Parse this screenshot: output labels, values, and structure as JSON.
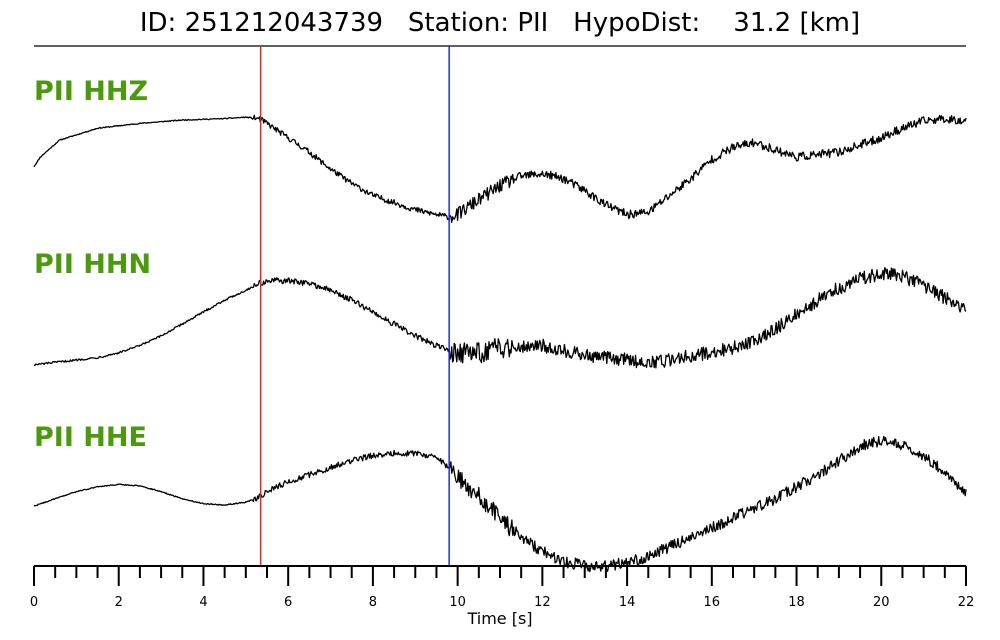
{
  "header": {
    "title": "ID: 251212043739   Station: PII   HypoDist:    31.2 [km]"
  },
  "chart_data": {
    "type": "line",
    "title": "ID: 251212043739   Station: PII   HypoDist:    31.2 [km]",
    "xlabel": "Time [s]",
    "ylabel": "",
    "xlim": [
      0,
      22
    ],
    "x_ticks": [
      0,
      2,
      4,
      6,
      8,
      10,
      12,
      14,
      16,
      18,
      20,
      22
    ],
    "x_tick_labels": [
      "0",
      "2",
      "4",
      "6",
      "8",
      "10",
      "12",
      "14",
      "16",
      "18",
      "20",
      "22"
    ],
    "minor_tick_step": 0.5,
    "grid": false,
    "picks": [
      {
        "time": 5.35,
        "color": "#e8221c"
      },
      {
        "time": 9.8,
        "color": "#1f2fe0"
      }
    ],
    "series": [
      {
        "name": "PII HHZ",
        "color": "#000000",
        "noise": [
          0.01,
          0.01,
          0.06,
          0.14,
          0.09
        ],
        "x": [
          0,
          0.15,
          0.6,
          1.5,
          2.5,
          3.5,
          4.5,
          5.0,
          5.3,
          5.5,
          6.0,
          6.5,
          7.0,
          7.5,
          8.0,
          8.5,
          9.0,
          9.5,
          9.8,
          10.0,
          10.4,
          11.0,
          11.5,
          12.0,
          12.5,
          13.0,
          13.5,
          14.0,
          14.5,
          15.0,
          15.5,
          16.0,
          16.5,
          17.0,
          17.5,
          18.0,
          18.5,
          19.0,
          19.5,
          20.0,
          20.5,
          21.0,
          21.5,
          22.0
        ],
        "values": [
          -0.45,
          -0.25,
          0.1,
          0.35,
          0.45,
          0.52,
          0.55,
          0.58,
          0.55,
          0.45,
          0.15,
          -0.15,
          -0.5,
          -0.8,
          -1.05,
          -1.2,
          -1.35,
          -1.45,
          -1.5,
          -1.45,
          -1.2,
          -0.85,
          -0.65,
          -0.6,
          -0.7,
          -0.95,
          -1.25,
          -1.45,
          -1.4,
          -1.05,
          -0.7,
          -0.3,
          -0.05,
          0.05,
          -0.1,
          -0.25,
          -0.2,
          -0.15,
          0.0,
          0.15,
          0.35,
          0.5,
          0.55,
          0.5
        ]
      },
      {
        "name": "PII HHN",
        "color": "#000000",
        "noise": [
          0.02,
          0.02,
          0.06,
          0.22,
          0.14
        ],
        "x": [
          0,
          0.5,
          1.0,
          1.5,
          2.0,
          2.5,
          3.0,
          3.5,
          4.0,
          4.5,
          5.0,
          5.3,
          5.6,
          6.0,
          6.5,
          7.0,
          7.5,
          8.0,
          8.5,
          9.0,
          9.5,
          9.8,
          10.0,
          10.5,
          11.0,
          11.5,
          12.0,
          12.5,
          13.0,
          13.5,
          14.0,
          14.5,
          15.0,
          15.5,
          16.0,
          16.5,
          17.0,
          17.5,
          18.0,
          18.5,
          19.0,
          19.5,
          20.0,
          20.5,
          21.0,
          21.5,
          22.0
        ],
        "values": [
          -1.35,
          -1.3,
          -1.25,
          -1.2,
          -1.1,
          -0.95,
          -0.75,
          -0.5,
          -0.25,
          0.0,
          0.2,
          0.35,
          0.4,
          0.4,
          0.35,
          0.2,
          0.0,
          -0.25,
          -0.5,
          -0.75,
          -0.95,
          -1.05,
          -1.1,
          -1.1,
          -1.0,
          -0.95,
          -0.95,
          -1.05,
          -1.15,
          -1.2,
          -1.25,
          -1.3,
          -1.25,
          -1.15,
          -1.1,
          -1.0,
          -0.85,
          -0.6,
          -0.3,
          0.0,
          0.25,
          0.45,
          0.55,
          0.5,
          0.3,
          0.05,
          -0.2
        ]
      },
      {
        "name": "PII HHE",
        "color": "#000000",
        "noise": [
          0.01,
          0.01,
          0.06,
          0.2,
          0.12
        ],
        "x": [
          0,
          0.5,
          1.0,
          1.5,
          2.0,
          2.5,
          3.0,
          3.5,
          4.0,
          4.5,
          5.0,
          5.35,
          5.6,
          6.0,
          6.5,
          7.0,
          7.5,
          8.0,
          8.5,
          9.0,
          9.5,
          9.8,
          10.0,
          10.5,
          11.0,
          11.5,
          12.0,
          12.5,
          13.0,
          13.5,
          14.0,
          14.5,
          15.0,
          15.5,
          16.0,
          16.5,
          17.0,
          17.5,
          18.0,
          18.5,
          19.0,
          19.5,
          20.0,
          20.5,
          21.0,
          21.5,
          22.0
        ],
        "values": [
          -0.5,
          -0.35,
          -0.2,
          -0.1,
          -0.05,
          -0.08,
          -0.2,
          -0.35,
          -0.45,
          -0.48,
          -0.42,
          -0.3,
          -0.15,
          0.0,
          0.15,
          0.3,
          0.45,
          0.55,
          0.6,
          0.6,
          0.5,
          0.3,
          0.1,
          -0.3,
          -0.75,
          -1.15,
          -1.45,
          -1.65,
          -1.75,
          -1.75,
          -1.68,
          -1.55,
          -1.35,
          -1.15,
          -0.95,
          -0.75,
          -0.55,
          -0.35,
          -0.1,
          0.15,
          0.45,
          0.75,
          0.85,
          0.75,
          0.55,
          0.2,
          -0.25
        ]
      }
    ]
  }
}
